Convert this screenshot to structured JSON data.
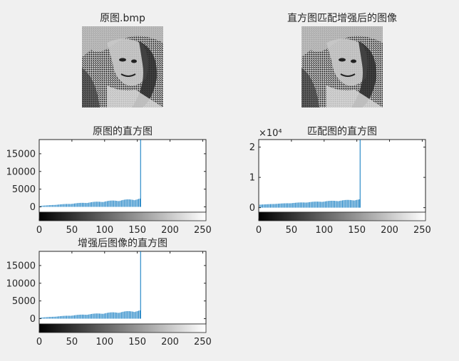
{
  "figure": {
    "image1_title": "原图.bmp",
    "image2_title": "直方图匹配增强后的图像",
    "image1_desc": "grayscale halftone photo of a woman in a hat",
    "image2_desc": "grayscale halftone photo of a woman in a hat (histogram matched)"
  },
  "chart_data": [
    {
      "type": "bar",
      "title": "原图的直方图",
      "xlim": [
        0,
        255
      ],
      "ylim": [
        -1500,
        19000
      ],
      "xticks": [
        0,
        50,
        100,
        150,
        200,
        250
      ],
      "yticks": [
        0,
        5000,
        10000,
        15000
      ],
      "ytick_labels": [
        "0",
        "5000",
        "10000",
        "15000"
      ],
      "exponent_label": "",
      "colorbar": true,
      "stem_color": "#0072bd",
      "peak_bin": 155,
      "peak_value": 19000,
      "stem_start_bin": 2,
      "stem_end_bin": 155,
      "stem_value_start": 300,
      "stem_value_end": 2400
    },
    {
      "type": "bar",
      "title": "匹配图的直方图",
      "xlim": [
        0,
        255
      ],
      "ylim": [
        -1500,
        22500
      ],
      "xticks": [
        0,
        50,
        100,
        150,
        200,
        250
      ],
      "yticks": [
        0,
        10000,
        20000
      ],
      "ytick_labels": [
        "0",
        "1",
        "2"
      ],
      "exponent_label": "×10⁴",
      "colorbar": true,
      "stem_color": "#0072bd",
      "peak_bin": 155,
      "peak_value": 22500,
      "stem_start_bin": 2,
      "stem_end_bin": 155,
      "stem_value_start": 1000,
      "stem_value_end": 2800
    },
    {
      "type": "bar",
      "title": "增强后图像的直方图",
      "xlim": [
        0,
        255
      ],
      "ylim": [
        -1500,
        19000
      ],
      "xticks": [
        0,
        50,
        100,
        150,
        200,
        250
      ],
      "yticks": [
        0,
        5000,
        10000,
        15000
      ],
      "ytick_labels": [
        "0",
        "5000",
        "10000",
        "15000"
      ],
      "exponent_label": "",
      "colorbar": true,
      "stem_color": "#0072bd",
      "peak_bin": 155,
      "peak_value": 19000,
      "stem_start_bin": 2,
      "stem_end_bin": 155,
      "stem_value_start": 300,
      "stem_value_end": 2400
    }
  ]
}
